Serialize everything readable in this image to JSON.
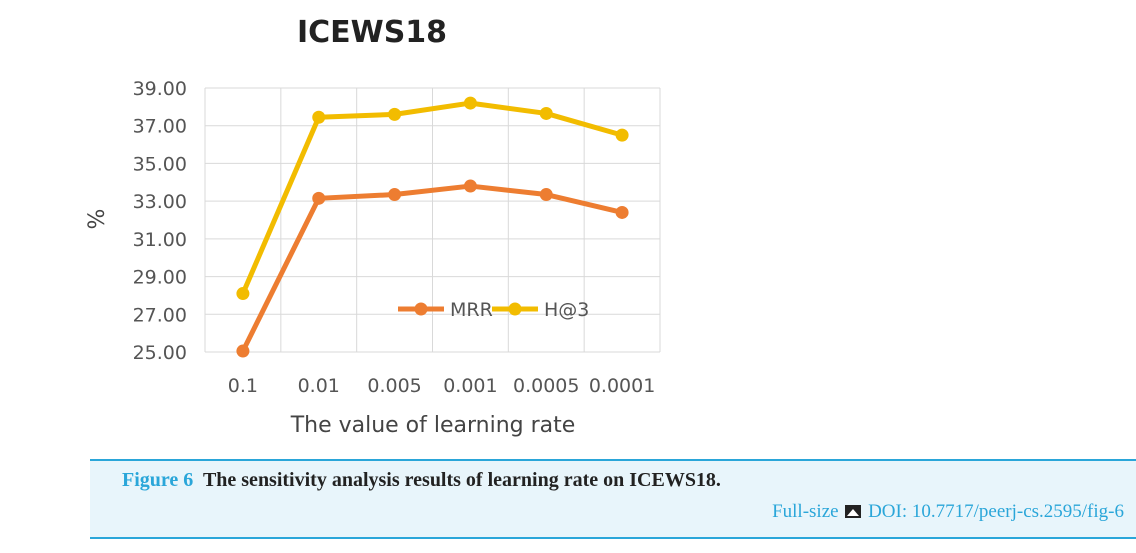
{
  "chart_data": {
    "type": "line",
    "title": "ICEWS18",
    "xlabel": "The value of learning rate",
    "ylabel": "%",
    "categories": [
      "0.1",
      "0.01",
      "0.005",
      "0.001",
      "0.0005",
      "0.0001"
    ],
    "ylim": [
      25,
      39
    ],
    "yticks": [
      "25.00",
      "27.00",
      "29.00",
      "31.00",
      "33.00",
      "35.00",
      "37.00",
      "39.00"
    ],
    "grid": true,
    "legend_position": "inside lower-right",
    "series": [
      {
        "name": "MRR",
        "color": "#ed7d31",
        "values": [
          25.05,
          33.15,
          33.35,
          33.8,
          33.35,
          32.4
        ]
      },
      {
        "name": "H@3",
        "color": "#f2bc00",
        "values": [
          28.1,
          37.45,
          37.6,
          38.2,
          37.65,
          36.5
        ]
      }
    ]
  },
  "caption": {
    "figure_label": "Figure 6",
    "text": "The sensitivity analysis results of learning rate on ICEWS18.",
    "fullsize_label": "Full-size",
    "doi": "DOI: 10.7717/peerj-cs.2595/fig-6"
  },
  "icons": {
    "image": "image-icon"
  }
}
